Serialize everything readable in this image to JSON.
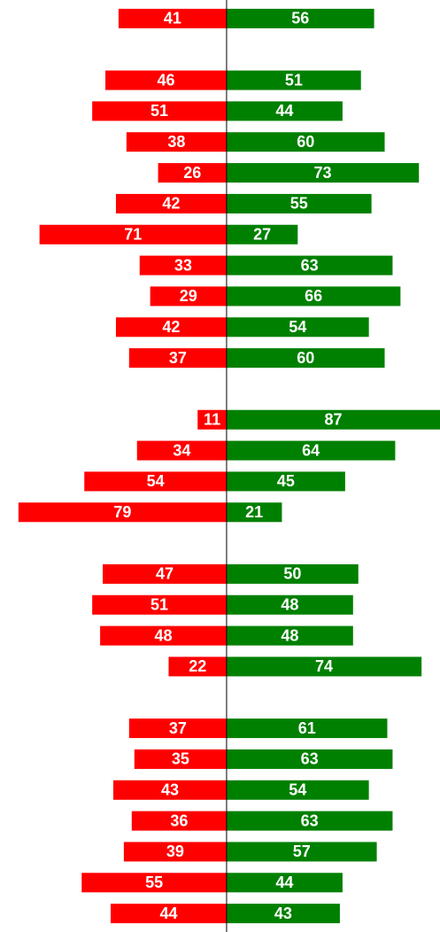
{
  "chart_data": {
    "type": "bar",
    "categories": [
      null,
      null,
      null,
      null,
      null,
      null,
      null,
      null,
      null,
      null,
      null,
      null,
      null,
      null,
      null,
      null,
      null,
      null,
      null,
      null,
      null,
      null,
      null,
      null,
      null,
      null,
      null,
      null,
      null,
      null
    ],
    "xlim": [
      -86,
      81
    ],
    "series": [
      {
        "color": "#ff0000",
        "direction": "left",
        "values": [
          41,
          null,
          46,
          51,
          38,
          26,
          42,
          71,
          33,
          29,
          42,
          37,
          null,
          11,
          34,
          54,
          79,
          null,
          47,
          51,
          48,
          22,
          null,
          37,
          35,
          43,
          36,
          39,
          55,
          44
        ]
      },
      {
        "color": "#008000",
        "direction": "right",
        "values": [
          56,
          null,
          51,
          44,
          60,
          73,
          55,
          27,
          63,
          66,
          54,
          60,
          null,
          87,
          64,
          45,
          21,
          null,
          50,
          48,
          48,
          74,
          null,
          61,
          63,
          54,
          63,
          57,
          44,
          43
        ]
      }
    ]
  }
}
